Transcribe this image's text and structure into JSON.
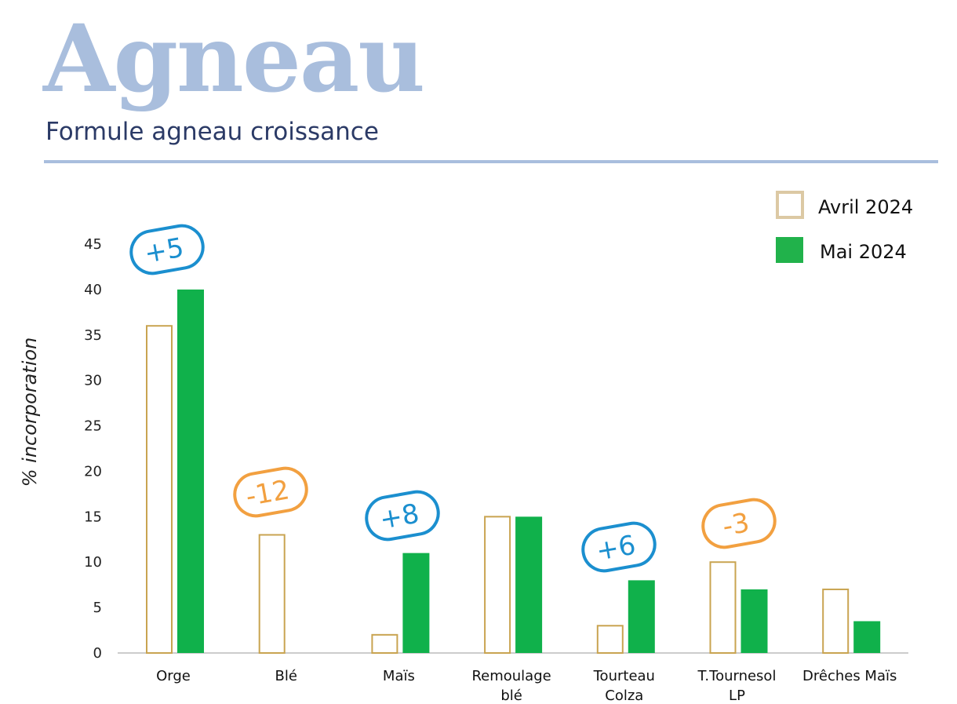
{
  "header": {
    "title": "Agneau",
    "subtitle": "Formule agneau croissance"
  },
  "chart_data": {
    "type": "bar",
    "title": "Formule agneau croissance",
    "xlabel": "",
    "ylabel": "% incorporation",
    "ylim": [
      0,
      45
    ],
    "yticks": [
      0,
      5,
      10,
      15,
      20,
      25,
      30,
      35,
      40,
      45
    ],
    "categories": [
      [
        "Orge"
      ],
      [
        "Blé"
      ],
      [
        "Maïs"
      ],
      [
        "Remoulage",
        "blé"
      ],
      [
        "Tourteau",
        "Colza"
      ],
      [
        "T.Tournesol",
        "LP"
      ],
      [
        "Drêches Maïs"
      ]
    ],
    "series": [
      {
        "name": "Avril 2024",
        "values": [
          36,
          13,
          2,
          15,
          3,
          10,
          7
        ]
      },
      {
        "name": "Mai 2024",
        "values": [
          40,
          0,
          11,
          15,
          8,
          7,
          3.5
        ]
      }
    ],
    "annotations": [
      {
        "category": 0,
        "text": "+5",
        "color": "#1b8fcf"
      },
      {
        "category": 1,
        "text": "-12",
        "color": "#f2a040"
      },
      {
        "category": 2,
        "text": "+8",
        "color": "#1b8fcf"
      },
      {
        "category": 4,
        "text": "+6",
        "color": "#1b8fcf"
      },
      {
        "category": 5,
        "text": "-3",
        "color": "#f2a040"
      }
    ],
    "legend_position": "top-right",
    "grid": false,
    "colors": {
      "avril": "#c9a451",
      "mai": "#10b14b",
      "legend_avril": "#dcc9a4"
    }
  }
}
